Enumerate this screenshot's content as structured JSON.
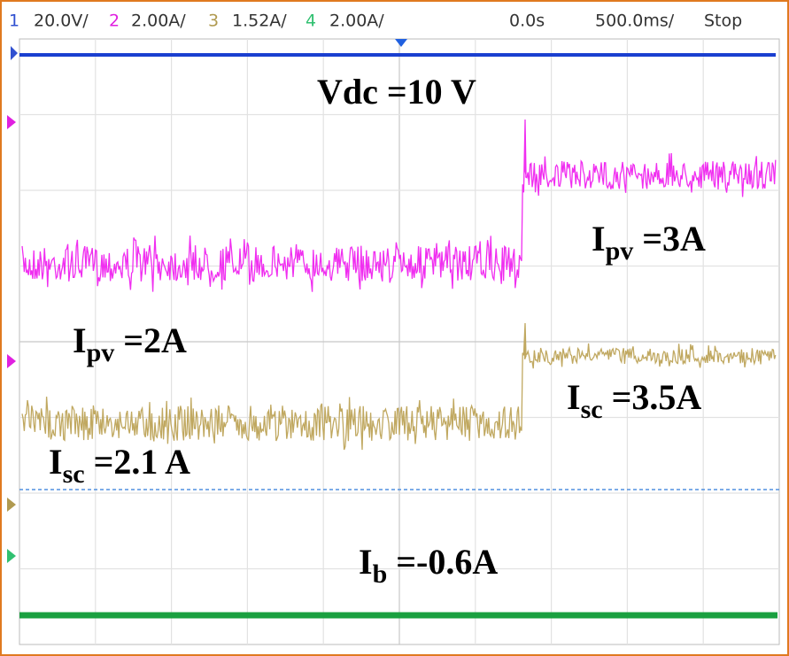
{
  "header": {
    "channels": [
      {
        "number": "1",
        "scale": "20.0V/"
      },
      {
        "number": "2",
        "scale": "2.00A/"
      },
      {
        "number": "3",
        "scale": "1.52A/"
      },
      {
        "number": "4",
        "scale": "2.00A/"
      }
    ],
    "delay": "0.0s",
    "timebase": "500.0ms/",
    "status": "Stop"
  },
  "annotations": [
    {
      "symbol": "Vdc",
      "subscript": "",
      "text": " =10 V"
    },
    {
      "symbol": "I",
      "subscript": "pv",
      "text": " =3A"
    },
    {
      "symbol": "I",
      "subscript": "pv",
      "text": " =2A"
    },
    {
      "symbol": "I",
      "subscript": "sc",
      "text": " =3.5A"
    },
    {
      "symbol": "I",
      "subscript": "sc",
      "text": " =2.1 A"
    },
    {
      "symbol": "I",
      "subscript": "b",
      "text": " =-0.6A"
    }
  ]
}
